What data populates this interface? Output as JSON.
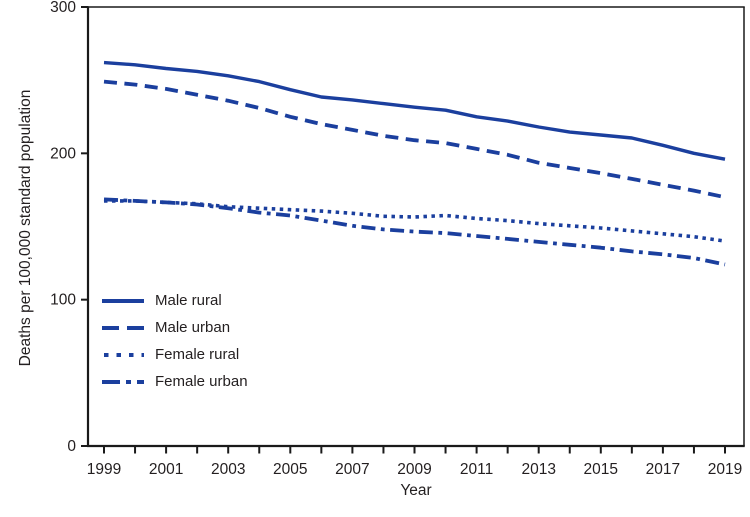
{
  "chart_data": {
    "type": "line",
    "title": "",
    "xlabel": "Year",
    "ylabel": "Deaths per 100,000 standard population",
    "x": [
      1999,
      2000,
      2001,
      2002,
      2003,
      2004,
      2005,
      2006,
      2007,
      2008,
      2009,
      2010,
      2011,
      2012,
      2013,
      2014,
      2015,
      2016,
      2017,
      2018,
      2019
    ],
    "x_tick_labels": [
      "1999",
      "2001",
      "2003",
      "2005",
      "2007",
      "2009",
      "2011",
      "2013",
      "2015",
      "2017",
      "2019"
    ],
    "y_ticks": [
      0,
      100,
      200,
      300
    ],
    "ylim": [
      0,
      300
    ],
    "grid": false,
    "legend_position": "inside-left-middle",
    "line_color": "#1b3f9e",
    "axis_color": "#1a1a1a",
    "text_color": "#231f20",
    "series": [
      {
        "name": "Male rural",
        "style": "solid",
        "values": [
          262,
          260.5,
          258,
          256,
          253,
          249,
          243.5,
          238.5,
          236.5,
          234,
          231.5,
          229.5,
          225,
          222,
          218,
          214.5,
          212.5,
          210.5,
          205.5,
          200,
          196
        ]
      },
      {
        "name": "Male urban",
        "style": "dashed",
        "values": [
          249,
          247,
          244,
          240,
          236,
          231,
          225,
          220,
          216,
          212,
          209,
          207,
          203,
          199,
          193.5,
          190,
          186.5,
          182.5,
          178.5,
          174.5,
          170
        ]
      },
      {
        "name": "Female rural",
        "style": "dotted",
        "values": [
          167.5,
          167.5,
          166.5,
          165.5,
          163.5,
          162.5,
          161.5,
          160.5,
          159,
          157,
          156.5,
          157.5,
          155.5,
          154,
          152,
          150.5,
          149,
          147,
          145,
          143,
          140
        ]
      },
      {
        "name": "Female urban",
        "style": "dashdot",
        "values": [
          168.5,
          167.5,
          166.5,
          165,
          162.5,
          159.5,
          157.5,
          154,
          150.5,
          148,
          146.5,
          145.5,
          143.5,
          141.5,
          139.5,
          137.5,
          135.5,
          133,
          131,
          128.5,
          124
        ]
      }
    ]
  }
}
